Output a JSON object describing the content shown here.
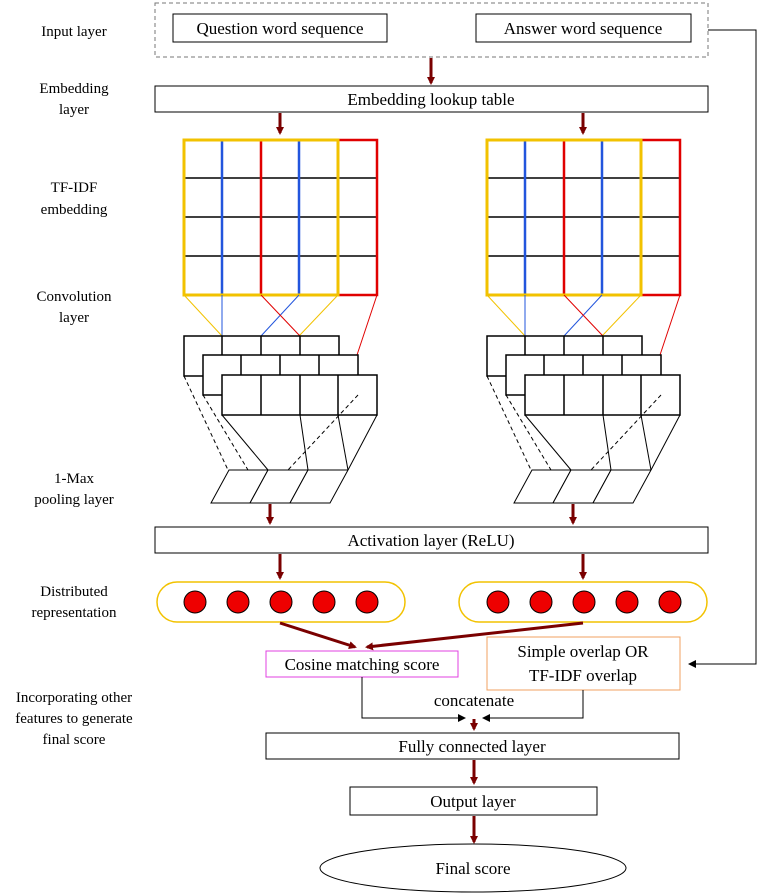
{
  "side_labels": {
    "input": [
      "Input layer"
    ],
    "embedding": [
      "Embedding",
      "layer"
    ],
    "tfidf": [
      "TF-IDF",
      "embedding"
    ],
    "convolution": [
      "Convolution",
      "layer"
    ],
    "pooling": [
      "1-Max",
      "pooling layer"
    ],
    "distributed": [
      "Distributed",
      "representation"
    ],
    "incorporating": [
      "Incorporating other",
      "features to generate",
      "final score"
    ]
  },
  "boxes": {
    "question": "Question word sequence",
    "answer": "Answer word sequence",
    "embedding_lookup": "Embedding lookup table",
    "activation": "Activation layer (ReLU)",
    "cosine": "Cosine matching score",
    "overlap": [
      "Simple overlap OR",
      "TF-IDF overlap"
    ],
    "concatenate": "concatenate",
    "fully_connected": "Fully connected layer",
    "output": "Output layer",
    "final": "Final score"
  },
  "colors": {
    "arrow": "#7a0000",
    "yellow": "#f2c200",
    "red": "#e00000",
    "blue": "#2255dd",
    "magenta": "#e040e0",
    "orange": "#f0a060",
    "node_fill": "#ee0000"
  },
  "representation_nodes_per_side": 5
}
